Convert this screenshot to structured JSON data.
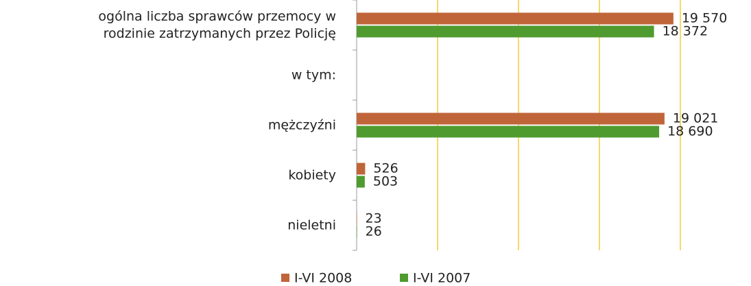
{
  "chart_data": {
    "type": "bar",
    "orientation": "horizontal",
    "categories": [
      "ogólna liczba sprawców przemocy w\nrodzinie zatrzymanych przez Policję",
      "w tym:",
      "mężczyźni",
      "kobiety",
      "nieletni"
    ],
    "series": [
      {
        "name": "I-VI 2008",
        "color": "#c0653a",
        "values": [
          19570,
          null,
          19021,
          526,
          23
        ],
        "value_labels": [
          "19 570",
          null,
          "19 021",
          "526",
          "23"
        ]
      },
      {
        "name": "I-VI 2007",
        "color": "#4f9b2f",
        "values": [
          18372,
          null,
          18690,
          503,
          26
        ],
        "value_labels": [
          "18 372",
          null,
          "18 690",
          "503",
          "26"
        ]
      }
    ],
    "xlim": [
      0,
      20000
    ],
    "xticks": [
      0,
      5000,
      10000,
      15000,
      20000
    ],
    "grid": true,
    "legend": "bottom"
  }
}
